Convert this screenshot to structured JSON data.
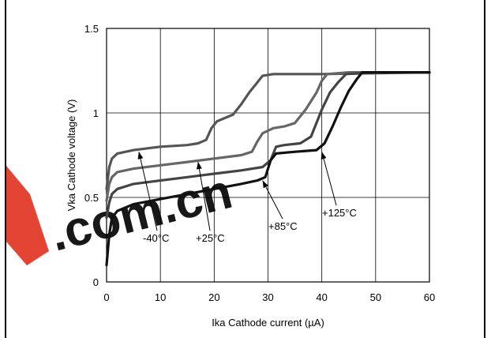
{
  "chart_data": {
    "type": "line",
    "title": "",
    "xlabel": "Ika Cathode current (µA)",
    "ylabel": "Vka Cathode voltage (V)",
    "xlim": [
      0,
      60
    ],
    "ylim": [
      0,
      1.5
    ],
    "x_ticks": [
      "0",
      "10",
      "20",
      "30",
      "40",
      "50",
      "60"
    ],
    "y_ticks": [
      "0",
      "0.5",
      "1",
      "1.5"
    ],
    "grid": true,
    "legend": "none",
    "series": [
      {
        "name": "-40°C",
        "color": "#555555",
        "points": [
          [
            0,
            0.55
          ],
          [
            0.5,
            0.68
          ],
          [
            1,
            0.73
          ],
          [
            2,
            0.76
          ],
          [
            5,
            0.78
          ],
          [
            10,
            0.8
          ],
          [
            15,
            0.81
          ],
          [
            17,
            0.82
          ],
          [
            18.5,
            0.84
          ],
          [
            19.5,
            0.91
          ],
          [
            20.5,
            0.95
          ],
          [
            22,
            0.97
          ],
          [
            23.5,
            0.99
          ],
          [
            25,
            1.05
          ],
          [
            26.5,
            1.12
          ],
          [
            28,
            1.18
          ],
          [
            29,
            1.22
          ],
          [
            31,
            1.23
          ],
          [
            40,
            1.23
          ],
          [
            60,
            1.24
          ]
        ]
      },
      {
        "name": "+25°C",
        "color": "#666666",
        "points": [
          [
            0,
            0.48
          ],
          [
            0.5,
            0.58
          ],
          [
            1,
            0.62
          ],
          [
            2,
            0.65
          ],
          [
            5,
            0.67
          ],
          [
            10,
            0.69
          ],
          [
            15,
            0.71
          ],
          [
            20,
            0.73
          ],
          [
            25,
            0.75
          ],
          [
            27,
            0.77
          ],
          [
            28,
            0.83
          ],
          [
            29,
            0.88
          ],
          [
            31,
            0.91
          ],
          [
            33,
            0.92
          ],
          [
            35,
            0.94
          ],
          [
            37,
            1.02
          ],
          [
            39,
            1.12
          ],
          [
            40,
            1.19
          ],
          [
            41,
            1.23
          ],
          [
            45,
            1.24
          ],
          [
            60,
            1.24
          ]
        ]
      },
      {
        "name": "+85°C",
        "color": "#444444",
        "points": [
          [
            0,
            0.38
          ],
          [
            0.5,
            0.47
          ],
          [
            1,
            0.52
          ],
          [
            2,
            0.55
          ],
          [
            5,
            0.58
          ],
          [
            10,
            0.6
          ],
          [
            15,
            0.62
          ],
          [
            20,
            0.64
          ],
          [
            25,
            0.66
          ],
          [
            29,
            0.68
          ],
          [
            30.5,
            0.72
          ],
          [
            31.5,
            0.8
          ],
          [
            33,
            0.81
          ],
          [
            36,
            0.82
          ],
          [
            38,
            0.86
          ],
          [
            40,
            1.02
          ],
          [
            41.5,
            1.12
          ],
          [
            43,
            1.18
          ],
          [
            44.5,
            1.23
          ],
          [
            50,
            1.24
          ],
          [
            60,
            1.24
          ]
        ]
      },
      {
        "name": "+125°C",
        "color": "#111111",
        "points": [
          [
            0,
            0.1
          ],
          [
            0.5,
            0.28
          ],
          [
            1,
            0.38
          ],
          [
            2,
            0.42
          ],
          [
            5,
            0.46
          ],
          [
            10,
            0.49
          ],
          [
            15,
            0.52
          ],
          [
            20,
            0.55
          ],
          [
            25,
            0.58
          ],
          [
            28,
            0.6
          ],
          [
            29.5,
            0.62
          ],
          [
            30.5,
            0.72
          ],
          [
            31.5,
            0.76
          ],
          [
            35,
            0.77
          ],
          [
            39,
            0.78
          ],
          [
            40.5,
            0.82
          ],
          [
            42,
            0.92
          ],
          [
            43.5,
            1.03
          ],
          [
            45,
            1.13
          ],
          [
            46.5,
            1.2
          ],
          [
            47.5,
            1.24
          ],
          [
            60,
            1.24
          ]
        ]
      }
    ],
    "annotations": [
      {
        "text": "-40°C",
        "target": [
          6,
          0.77
        ]
      },
      {
        "text": "+25°C",
        "target": [
          17,
          0.71
        ]
      },
      {
        "text": "+85°C",
        "target": [
          29,
          0.6
        ]
      },
      {
        "text": "+125°C",
        "target": [
          40,
          0.77
        ]
      }
    ]
  },
  "watermark": {
    "text": ".com.cn",
    "color": "#e0301e"
  }
}
